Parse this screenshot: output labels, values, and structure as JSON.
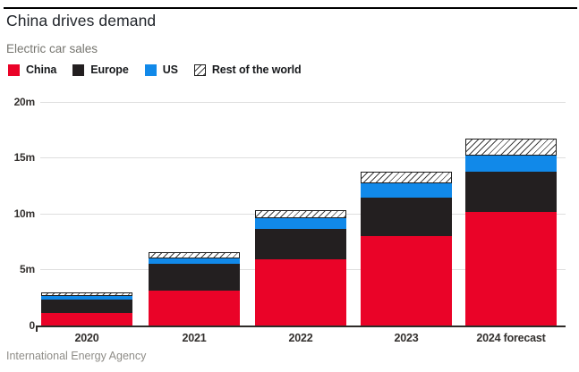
{
  "chart_data": {
    "type": "bar",
    "stacked": true,
    "title": "China drives demand",
    "subtitle": "Electric car sales",
    "source": "International Energy Agency",
    "categories": [
      "2020",
      "2021",
      "2022",
      "2023",
      "2024 forecast"
    ],
    "series": [
      {
        "name": "China",
        "color": "#ea0328",
        "pattern": "solid",
        "values": [
          1.1,
          3.1,
          5.9,
          8.0,
          10.1
        ]
      },
      {
        "name": "Europe",
        "color": "#231f20",
        "pattern": "solid",
        "values": [
          1.2,
          2.4,
          2.7,
          3.4,
          3.6
        ]
      },
      {
        "name": "US",
        "color": "#1189e9",
        "pattern": "solid",
        "values": [
          0.3,
          0.5,
          1.0,
          1.3,
          1.5
        ]
      },
      {
        "name": "Rest of the world",
        "color": "#ffffff",
        "pattern": "hatch",
        "values": [
          0.3,
          0.5,
          0.7,
          1.0,
          1.5
        ]
      }
    ],
    "totals": [
      2.9,
      6.5,
      10.3,
      13.7,
      16.7
    ],
    "ylim": [
      0,
      20
    ],
    "yticks": [
      {
        "value": 0,
        "label": "0"
      },
      {
        "value": 5,
        "label": "5m"
      },
      {
        "value": 10,
        "label": "10m"
      },
      {
        "value": 15,
        "label": "15m"
      },
      {
        "value": 20,
        "label": "20m"
      }
    ],
    "legend_position": "top",
    "grid": "horizontal"
  }
}
